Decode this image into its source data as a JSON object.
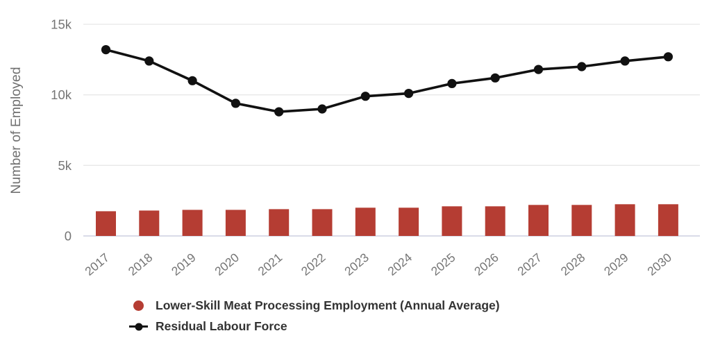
{
  "chart_data": {
    "type": "combo",
    "title": "",
    "categories": [
      "2017",
      "2018",
      "2019",
      "2020",
      "2021",
      "2022",
      "2023",
      "2024",
      "2025",
      "2026",
      "2027",
      "2028",
      "2029",
      "2030"
    ],
    "series": [
      {
        "name": "Lower-Skill Meat Processing Employment (Annual Average)",
        "type": "bar",
        "color": "#b53d33",
        "values": [
          1750,
          1800,
          1850,
          1850,
          1900,
          1900,
          2000,
          2000,
          2100,
          2100,
          2200,
          2200,
          2250,
          2250
        ]
      },
      {
        "name": "Residual Labour Force",
        "type": "line",
        "color": "#111111",
        "values": [
          13200,
          12400,
          11000,
          9400,
          8800,
          9000,
          9900,
          10100,
          10800,
          11200,
          11800,
          12000,
          12400,
          12700
        ]
      }
    ],
    "xlabel": "",
    "ylabel": "Number of Employed",
    "ylim": [
      0,
      15000
    ],
    "yticks": [
      {
        "v": 0,
        "label": "0"
      },
      {
        "v": 5000,
        "label": "5k"
      },
      {
        "v": 10000,
        "label": "10k"
      },
      {
        "v": 15000,
        "label": "15k"
      }
    ],
    "grid": true,
    "legend_position": "bottom-left"
  },
  "colors": {
    "axis_text": "#757575",
    "ylabel_text": "#707070",
    "grid_line": "#e8e8e8",
    "zero_line": "#d9dbe8",
    "legend_text": "#333333"
  }
}
